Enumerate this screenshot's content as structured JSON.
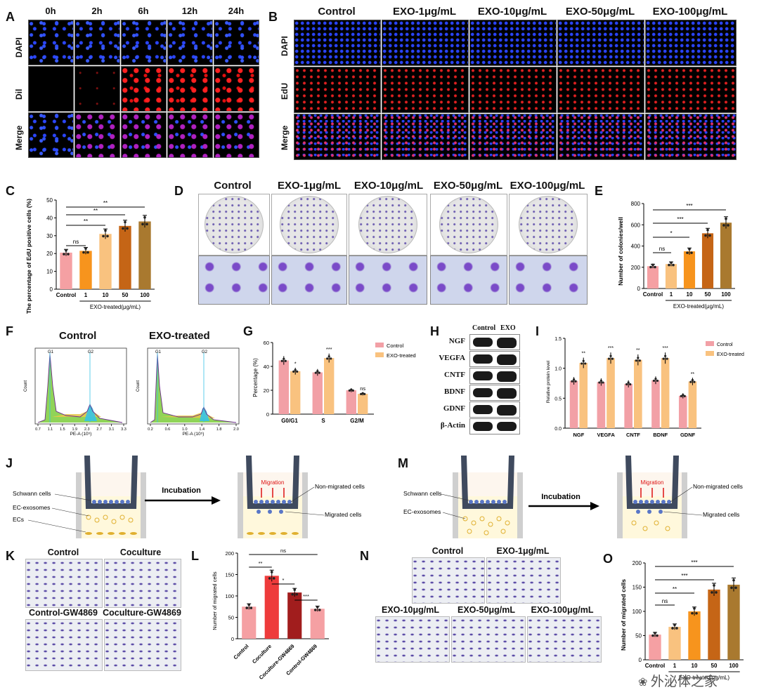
{
  "panel_letters": [
    "A",
    "B",
    "C",
    "D",
    "E",
    "F",
    "G",
    "H",
    "I",
    "J",
    "M",
    "K",
    "L",
    "N",
    "O"
  ],
  "panelA": {
    "columns": [
      "0h",
      "2h",
      "6h",
      "12h",
      "24h"
    ],
    "rows": [
      "DAPI",
      "Dil",
      "Merge"
    ]
  },
  "panelB": {
    "columns": [
      "Control",
      "EXO-1μg/mL",
      "EXO-10μg/mL",
      "EXO-50μg/mL",
      "EXO-100μg/mL"
    ],
    "rows": [
      "DAPI",
      "EdU",
      "Merge"
    ]
  },
  "panelD": {
    "columns": [
      "Control",
      "EXO-1μg/mL",
      "EXO-10μg/mL",
      "EXO-50μg/mL",
      "EXO-100μg/mL"
    ]
  },
  "panelF": {
    "titles": [
      "Control",
      "EXO-treated"
    ],
    "xlabel": "PE-A (10⁵)",
    "ylabel": "Count",
    "peak_labels": [
      "G1",
      "G2"
    ],
    "xticks_control": [
      "0.7",
      "1.1",
      "1.5",
      "1.9",
      "2.3",
      "2.7",
      "3.1",
      "3.3"
    ],
    "xticks_treated": [
      "0.2",
      "0.6",
      "1.0",
      "1.4",
      "1.8",
      "2.0"
    ]
  },
  "panelH": {
    "headers": [
      "Control",
      "EXO"
    ],
    "proteins": [
      "NGF",
      "VEGFA",
      "CNTF",
      "BDNF",
      "GDNF",
      "β-Actin"
    ]
  },
  "panelJ": {
    "labels_left": [
      "Schwann cells",
      "EC-exosomes",
      "ECs"
    ],
    "arrow": "Incubation",
    "migration": "Migration",
    "labels_right": [
      "Non-migrated cells",
      "Migrated cells"
    ]
  },
  "panelM": {
    "labels_left": [
      "Schwann cells",
      "EC-exosomes"
    ],
    "arrow": "Incubation",
    "migration": "Migration",
    "labels_right": [
      "Non-migrated cells",
      "Migrated cells"
    ]
  },
  "panelK": {
    "labels": [
      "Control",
      "Coculture",
      "Control-GW4869",
      "Coculture-GW4869"
    ]
  },
  "panelN": {
    "labels": [
      "Control",
      "EXO-1μg/mL",
      "EXO-10μg/mL",
      "EXO-50μg/mL",
      "EXO-100μg/mL"
    ]
  },
  "watermark": "外泌体之家",
  "chart_data": [
    {
      "id": "C",
      "type": "bar",
      "ylabel": "The percentage of EdU positive cells (%)",
      "xlabel": "EXO-treated(μg/mL)",
      "categories": [
        "Control",
        "1",
        "10",
        "50",
        "100"
      ],
      "values": [
        20.5,
        21.5,
        31,
        35.5,
        38
      ],
      "ylim": [
        0,
        50
      ],
      "yticks": [
        0,
        10,
        20,
        30,
        40,
        50
      ],
      "colors": [
        "#f5a0a3",
        "#f7941d",
        "#f9c27f",
        "#c56516",
        "#a9792f"
      ],
      "significance": [
        {
          "pair": [
            "Control",
            "1"
          ],
          "label": "ns"
        },
        {
          "pair": [
            "Control",
            "10"
          ],
          "label": "**"
        },
        {
          "pair": [
            "Control",
            "50"
          ],
          "label": "**"
        },
        {
          "pair": [
            "Control",
            "100"
          ],
          "label": "**"
        }
      ]
    },
    {
      "id": "E",
      "type": "bar",
      "ylabel": "Number of colonies/well",
      "xlabel": "EXO-treated(μg/mL)",
      "categories": [
        "Control",
        "1",
        "10",
        "50",
        "100"
      ],
      "values": [
        210,
        230,
        350,
        520,
        620
      ],
      "ylim": [
        0,
        800
      ],
      "yticks": [
        0,
        200,
        400,
        600,
        800
      ],
      "colors": [
        "#f5a0a3",
        "#f9c27f",
        "#f7941d",
        "#c56516",
        "#a9792f"
      ],
      "significance": [
        {
          "pair": [
            "Control",
            "1"
          ],
          "label": "ns"
        },
        {
          "pair": [
            "Control",
            "10"
          ],
          "label": "*"
        },
        {
          "pair": [
            "Control",
            "50"
          ],
          "label": "***"
        },
        {
          "pair": [
            "Control",
            "100"
          ],
          "label": "***"
        }
      ]
    },
    {
      "id": "G",
      "type": "bar",
      "ylabel": "Percentage (%)",
      "categories": [
        "G0/G1",
        "S",
        "G2/M"
      ],
      "series": [
        {
          "name": "Control",
          "values": [
            45,
            35,
            20
          ],
          "color": "#f2a0a6"
        },
        {
          "name": "EXO-treated",
          "values": [
            36,
            47,
            17
          ],
          "color": "#f9c27f"
        }
      ],
      "ylim": [
        0,
        60
      ],
      "yticks": [
        0,
        20,
        40,
        60
      ],
      "significance": [
        "*",
        "***",
        "ns"
      ]
    },
    {
      "id": "I",
      "type": "bar",
      "ylabel": "Relative protein level",
      "categories": [
        "NGF",
        "VEGFA",
        "CNTF",
        "BDNF",
        "GDNF"
      ],
      "series": [
        {
          "name": "Control",
          "values": [
            0.79,
            0.77,
            0.74,
            0.8,
            0.54
          ],
          "color": "#f2a0a6"
        },
        {
          "name": "EXO-treated",
          "values": [
            1.09,
            1.17,
            1.14,
            1.17,
            0.78
          ],
          "color": "#f9c27f"
        }
      ],
      "ylim": [
        0,
        1.5
      ],
      "yticks": [
        0.0,
        0.5,
        1.0,
        1.5
      ],
      "significance": [
        "**",
        "***",
        "**",
        "***",
        "**"
      ]
    },
    {
      "id": "L",
      "type": "bar",
      "ylabel": "Number of migrated cells",
      "categories": [
        "Control",
        "Coculture",
        "Coculture-GW4869",
        "Control-GW4869"
      ],
      "values": [
        75,
        147,
        108,
        70
      ],
      "ylim": [
        0,
        200
      ],
      "yticks": [
        0,
        50,
        100,
        150,
        200
      ],
      "colors": [
        "#f5a0a3",
        "#ee3b3b",
        "#a11d1d",
        "#f5a0a3"
      ],
      "significance": [
        {
          "pair": [
            "Control",
            "Coculture"
          ],
          "label": "**"
        },
        {
          "pair": [
            "Coculture",
            "Coculture-GW4869"
          ],
          "label": "*"
        },
        {
          "pair": [
            "Coculture-GW4869",
            "Control-GW4869"
          ],
          "label": "***"
        },
        {
          "pair": [
            "Control",
            "Control-GW4869"
          ],
          "label": "ns"
        }
      ]
    },
    {
      "id": "O",
      "type": "bar",
      "ylabel": "Number of migrated cells",
      "xlabel": "EXO-treated(μg/mL)",
      "categories": [
        "Control",
        "1",
        "10",
        "50",
        "100"
      ],
      "values": [
        52,
        68,
        100,
        145,
        155
      ],
      "ylim": [
        0,
        200
      ],
      "yticks": [
        0,
        50,
        100,
        150,
        200
      ],
      "colors": [
        "#f5a0a3",
        "#f9c27f",
        "#f7941d",
        "#c56516",
        "#a9792f"
      ],
      "significance": [
        {
          "pair": [
            "Control",
            "1"
          ],
          "label": "ns"
        },
        {
          "pair": [
            "Control",
            "10"
          ],
          "label": "**"
        },
        {
          "pair": [
            "Control",
            "50"
          ],
          "label": "***"
        },
        {
          "pair": [
            "Control",
            "100"
          ],
          "label": "***"
        }
      ]
    }
  ]
}
